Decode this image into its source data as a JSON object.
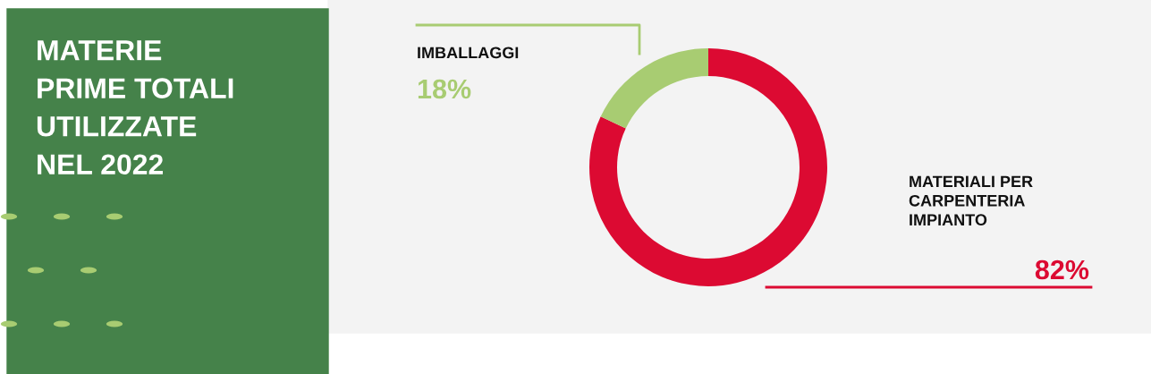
{
  "chart_data": {
    "type": "donut",
    "title": "MATERIE\nPRIME TOTALI\nUTILIZZATE\nNEL 2022",
    "categories": [
      "MATERIALI PER\nCARPENTERIA\nIMPIANTO",
      "IMBALLAGGI"
    ],
    "values": [
      82,
      18
    ],
    "value_labels": [
      "82%",
      "18%"
    ],
    "colors": [
      "#dc0a32",
      "#a8cc72"
    ],
    "legend": false
  }
}
